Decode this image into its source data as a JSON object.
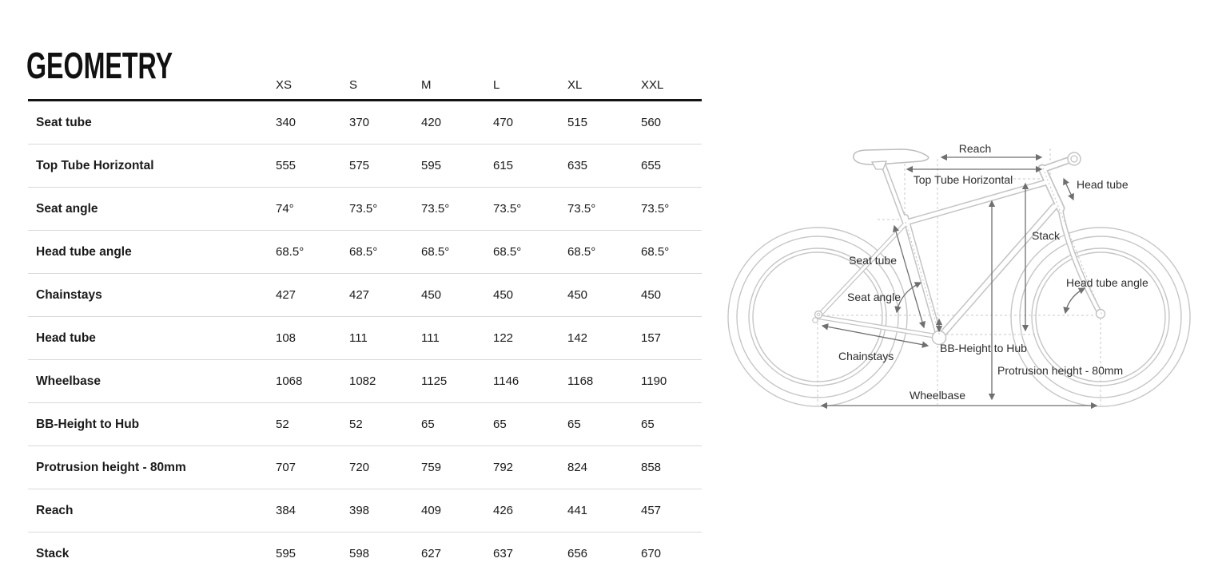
{
  "page": {
    "title": "GEOMETRY"
  },
  "table": {
    "size_headers": [
      "XS",
      "S",
      "M",
      "L",
      "XL",
      "XXL"
    ],
    "rows": [
      {
        "label": "Seat tube",
        "values": [
          "340",
          "370",
          "420",
          "470",
          "515",
          "560"
        ]
      },
      {
        "label": "Top Tube Horizontal",
        "values": [
          "555",
          "575",
          "595",
          "615",
          "635",
          "655"
        ]
      },
      {
        "label": "Seat angle",
        "values": [
          "74°",
          "73.5°",
          "73.5°",
          "73.5°",
          "73.5°",
          "73.5°"
        ]
      },
      {
        "label": "Head tube angle",
        "values": [
          "68.5°",
          "68.5°",
          "68.5°",
          "68.5°",
          "68.5°",
          "68.5°"
        ]
      },
      {
        "label": "Chainstays",
        "values": [
          "427",
          "427",
          "450",
          "450",
          "450",
          "450"
        ]
      },
      {
        "label": "Head tube",
        "values": [
          "108",
          "111",
          "111",
          "122",
          "142",
          "157"
        ]
      },
      {
        "label": "Wheelbase",
        "values": [
          "1068",
          "1082",
          "1125",
          "1146",
          "1168",
          "1190"
        ]
      },
      {
        "label": "BB-Height to Hub",
        "values": [
          "52",
          "52",
          "65",
          "65",
          "65",
          "65"
        ]
      },
      {
        "label": "Protrusion height - 80mm",
        "values": [
          "707",
          "720",
          "759",
          "792",
          "824",
          "858"
        ]
      },
      {
        "label": "Reach",
        "values": [
          "384",
          "398",
          "409",
          "426",
          "441",
          "457"
        ]
      },
      {
        "label": "Stack",
        "values": [
          "595",
          "598",
          "627",
          "637",
          "656",
          "670"
        ]
      }
    ]
  },
  "diagram": {
    "labels": {
      "reach": "Reach",
      "top_tube_horizontal": "Top Tube Horizontal",
      "head_tube": "Head tube",
      "stack": "Stack",
      "seat_tube": "Seat tube",
      "seat_angle": "Seat angle",
      "head_tube_angle": "Head tube angle",
      "chainstays": "Chainstays",
      "bb_height_to_hub": "BB-Height to Hub",
      "protrusion_height": "Protrusion height - 80mm",
      "wheelbase": "Wheelbase"
    },
    "colors": {
      "outline": "#c4c4c4",
      "dimension": "#6f6f6f",
      "guide": "#c9c9c9",
      "label": "#2d2d2d"
    }
  }
}
